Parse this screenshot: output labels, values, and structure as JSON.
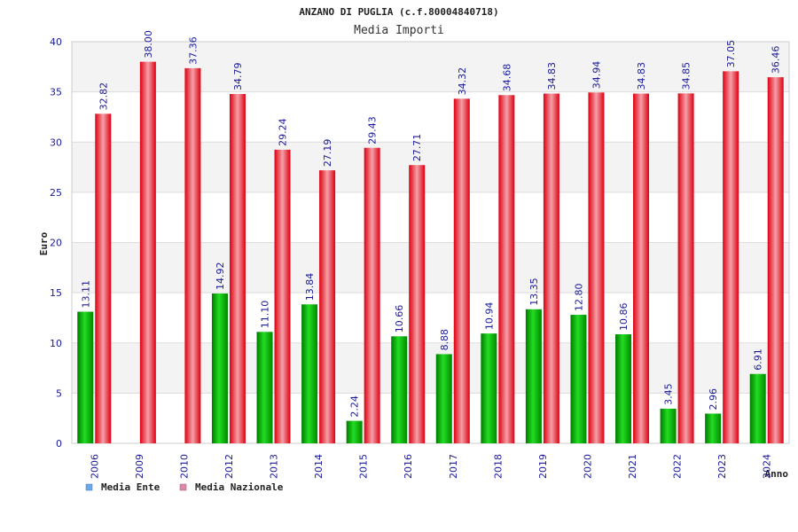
{
  "chart_data": {
    "type": "bar",
    "title": "ANZANO DI PUGLIA (c.f.80004840718)",
    "subtitle": "Media Importi",
    "xlabel": "Anno",
    "ylabel": "Euro",
    "ylim": [
      0,
      40
    ],
    "yticks": [
      0,
      5,
      10,
      15,
      20,
      25,
      30,
      35,
      40
    ],
    "categories": [
      "2006",
      "2009",
      "2010",
      "2012",
      "2013",
      "2014",
      "2015",
      "2016",
      "2017",
      "2018",
      "2019",
      "2020",
      "2021",
      "2022",
      "2023",
      "2024"
    ],
    "series": [
      {
        "name": "Media Ente",
        "color": "#00b000",
        "legend_color": "#66aaee",
        "values": [
          13.11,
          null,
          null,
          14.92,
          11.1,
          13.84,
          2.24,
          10.66,
          8.88,
          10.94,
          13.35,
          12.8,
          10.86,
          3.45,
          2.96,
          6.91
        ],
        "labels": [
          "13.11",
          "",
          "",
          "14.92",
          "11.10",
          "13.84",
          "2.24",
          "10.66",
          "8.88",
          "10.94",
          "13.35",
          "12.80",
          "10.86",
          "3.45",
          "2.96",
          "6.91"
        ]
      },
      {
        "name": "Media Nazionale",
        "color": "#ee1122",
        "legend_color": "#dd88aa",
        "values": [
          32.82,
          38.0,
          37.36,
          34.79,
          29.24,
          27.19,
          29.43,
          27.71,
          34.32,
          34.68,
          34.83,
          34.94,
          34.83,
          34.85,
          37.05,
          36.46
        ],
        "labels": [
          "32.82",
          "38.00",
          "37.36",
          "34.79",
          "29.24",
          "27.19",
          "29.43",
          "27.71",
          "34.32",
          "34.68",
          "34.83",
          "34.94",
          "34.83",
          "34.85",
          "37.05",
          "36.46"
        ]
      }
    ],
    "grid": true,
    "legend_position": "bottom-left"
  }
}
